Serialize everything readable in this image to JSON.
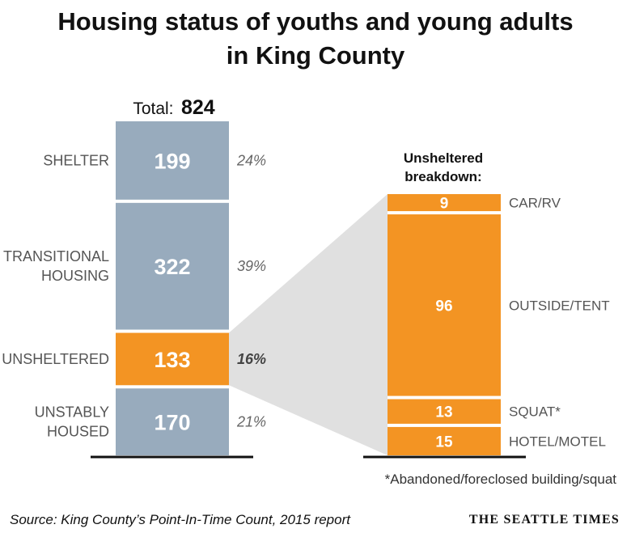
{
  "title_line1": "Housing status of youths and young adults",
  "title_line2": "in King County",
  "total_label": "Total:",
  "total_value": "824",
  "breakdown_title_line1": "Unsheltered",
  "breakdown_title_line2": "breakdown:",
  "footnote": "*Abandoned/foreclosed building/squat",
  "source": "Source: King County’s Point-In-Time Count, 2015 report",
  "credit": "THE SEATTLE TIMES",
  "colors": {
    "housed_bar": "#98abbd",
    "unsheltered_bar": "#f39423",
    "funnel": "#e0e0e0",
    "label_text": "#555555",
    "baseline": "#111111"
  },
  "chart_data": [
    {
      "type": "bar",
      "stacked": true,
      "categories": [
        "SHELTER",
        "TRANSITIONAL HOUSING",
        "UNSHELTERED",
        "UNSTABLY HOUSED"
      ],
      "values": [
        199,
        322,
        133,
        170
      ],
      "percent_labels": [
        "24%",
        "39%",
        "16%",
        "21%"
      ],
      "highlighted": "UNSHELTERED",
      "total": 824
    },
    {
      "type": "bar",
      "stacked": true,
      "categories": [
        "CAR/RV",
        "OUTSIDE/TENT",
        "SQUAT*",
        "HOTEL/MOTEL"
      ],
      "values": [
        9,
        96,
        13,
        15
      ],
      "total": 133
    }
  ]
}
